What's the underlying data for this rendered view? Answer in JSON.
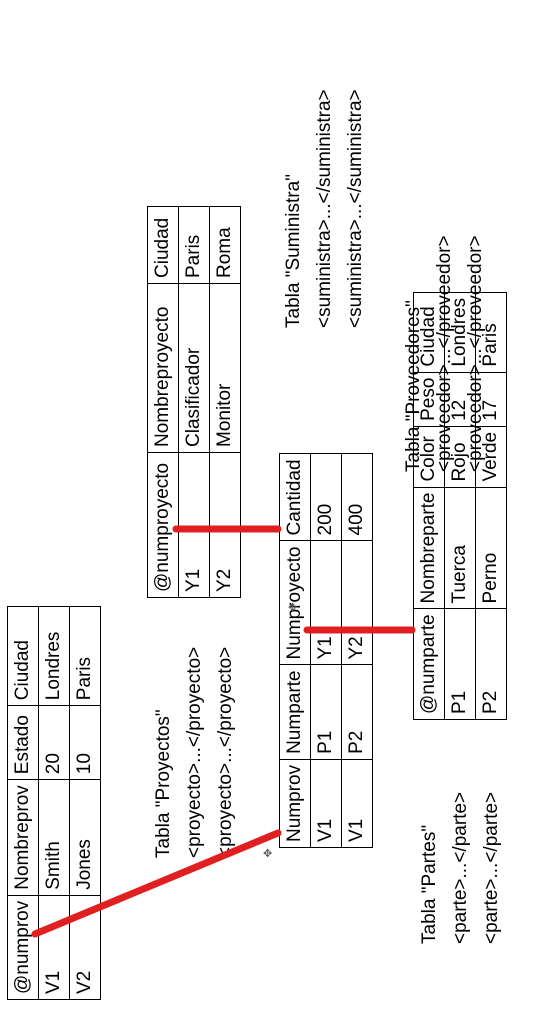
{
  "tables": {
    "proveedores": {
      "caption": "Tabla \"Proveedores\"",
      "tags": [
        "<proveedor>...</proveedor>",
        "<proveedor>...</proveedor>"
      ],
      "headers": [
        "@numprov",
        "Nombreprov",
        "Estado",
        "Ciudad"
      ],
      "rows": [
        [
          "V1",
          "Smith",
          "20",
          "Londres"
        ],
        [
          "V2",
          "Jones",
          "10",
          "Paris"
        ]
      ]
    },
    "proyectos": {
      "caption": "Tabla \"Proyectos\"",
      "tags": [
        "<proyecto>...</proyecto>",
        "<proyecto>...</proyecto>"
      ],
      "headers": [
        "@numproyecto",
        "Nombreproyecto",
        "Ciudad"
      ],
      "rows": [
        [
          "Y1",
          "Clasificador",
          "Paris"
        ],
        [
          "Y2",
          "Monitor",
          "Roma"
        ]
      ]
    },
    "suministra": {
      "caption": "Tabla \"Suministra\"",
      "tags": [
        "<suministra>...</suministra>",
        "<suministra>...</suministra>"
      ],
      "headers": [
        "Numprov",
        "Numparte",
        "Numproyecto",
        "Cantidad"
      ],
      "rows": [
        [
          "V1",
          "P1",
          "Y1",
          "200"
        ],
        [
          "V1",
          "P2",
          "Y2",
          "400"
        ]
      ]
    },
    "partes": {
      "caption": "Tabla \"Partes\"",
      "tags": [
        "<parte>...</parte>",
        "<parte>...</parte>"
      ],
      "headers": [
        "@numparte",
        "Nombreparte",
        "Color",
        "Peso",
        "Ciudad"
      ],
      "rows": [
        [
          "P1",
          "Tuerca",
          "Rojo",
          "12",
          "Londres"
        ],
        [
          "P2",
          "Perno",
          "Verde",
          "17",
          "Paris"
        ]
      ]
    }
  },
  "colors": {
    "link": "#e02020"
  }
}
